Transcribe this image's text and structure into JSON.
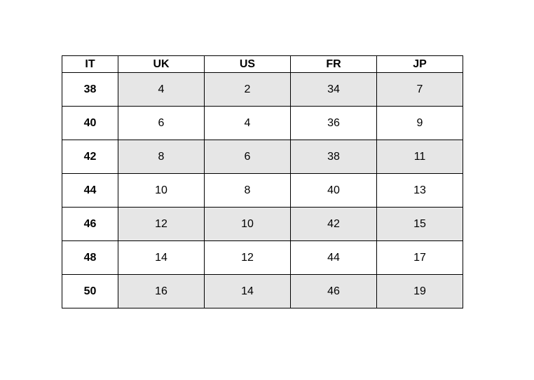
{
  "table": {
    "headers": [
      "IT",
      "UK",
      "US",
      "FR",
      "JP"
    ],
    "rows": [
      [
        "38",
        "4",
        "2",
        "34",
        "7"
      ],
      [
        "40",
        "6",
        "4",
        "36",
        "9"
      ],
      [
        "42",
        "8",
        "6",
        "38",
        "11"
      ],
      [
        "44",
        "10",
        "8",
        "40",
        "13"
      ],
      [
        "46",
        "12",
        "10",
        "42",
        "15"
      ],
      [
        "48",
        "14",
        "12",
        "44",
        "17"
      ],
      [
        "50",
        "16",
        "14",
        "46",
        "19"
      ]
    ],
    "shaded_row_color": "#e6e6e6"
  }
}
